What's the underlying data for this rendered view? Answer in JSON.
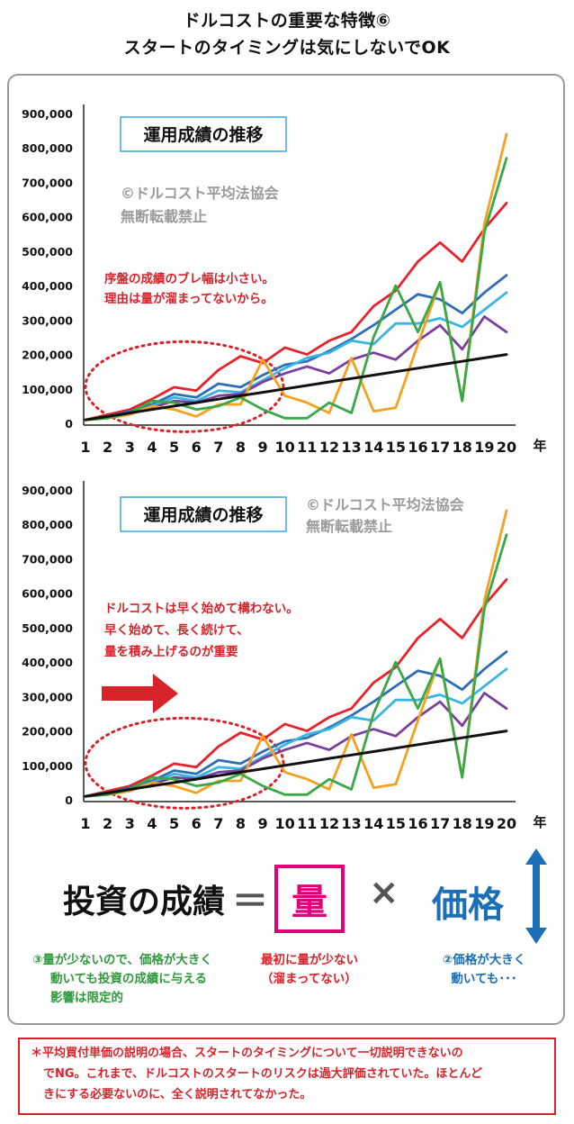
{
  "header": {
    "line1": "ドルコストの重要な特徴⑥",
    "line2": "スタートのタイミングは気にしないでOK"
  },
  "chart_data": [
    {
      "type": "line",
      "title": "運用成績の推移",
      "watermark_line1": "©ドルコスト平均法協会",
      "watermark_line2": "無断転載禁止",
      "annotation_lines": [
        "序盤の成績のブレ幅は小さい。",
        "理由は量が溜まってないから。"
      ],
      "x": [
        1,
        2,
        3,
        4,
        5,
        6,
        7,
        8,
        9,
        10,
        11,
        12,
        13,
        14,
        15,
        16,
        17,
        18,
        19,
        20
      ],
      "x_tick_labels": [
        "1",
        "2",
        "3",
        "4",
        "5",
        "6",
        "7",
        "8",
        "9",
        "10",
        "11",
        "12",
        "13",
        "14",
        "15",
        "16",
        "17",
        "18",
        "19",
        "20"
      ],
      "xlabel": "年",
      "ylim": [
        0,
        900000
      ],
      "y_tick_labels": [
        "0",
        "100,000",
        "200,000",
        "300,000",
        "400,000",
        "500,000",
        "600,000",
        "700,000",
        "800,000",
        "900,000"
      ],
      "grid": false,
      "series": [
        {
          "color": "#111111",
          "values": [
            10000,
            20000,
            30000,
            40000,
            50000,
            60000,
            70000,
            80000,
            90000,
            100000,
            110000,
            120000,
            130000,
            140000,
            150000,
            160000,
            170000,
            180000,
            190000,
            200000
          ]
        },
        {
          "color": "#e8222a",
          "values": [
            10000,
            25000,
            40000,
            70000,
            105000,
            95000,
            155000,
            195000,
            175000,
            220000,
            200000,
            240000,
            265000,
            340000,
            385000,
            470000,
            525000,
            470000,
            565000,
            640000
          ]
        },
        {
          "color": "#2f6db5",
          "values": [
            10000,
            20000,
            35000,
            55000,
            85000,
            75000,
            115000,
            105000,
            140000,
            170000,
            180000,
            210000,
            245000,
            285000,
            330000,
            375000,
            360000,
            320000,
            380000,
            430000
          ]
        },
        {
          "color": "#39b5e3",
          "values": [
            10000,
            20000,
            30000,
            50000,
            75000,
            65000,
            95000,
            90000,
            125000,
            160000,
            190000,
            205000,
            240000,
            230000,
            290000,
            290000,
            305000,
            280000,
            330000,
            380000
          ]
        },
        {
          "color": "#7b3f9e",
          "values": [
            10000,
            18000,
            30000,
            45000,
            65000,
            60000,
            80000,
            85000,
            120000,
            145000,
            165000,
            145000,
            185000,
            205000,
            185000,
            240000,
            285000,
            215000,
            310000,
            265000
          ]
        },
        {
          "color": "#f5a01e",
          "values": [
            10000,
            15000,
            25000,
            50000,
            40000,
            20000,
            55000,
            55000,
            185000,
            80000,
            60000,
            30000,
            190000,
            35000,
            45000,
            230000,
            410000,
            65000,
            580000,
            840000
          ]
        },
        {
          "color": "#39a846",
          "values": [
            10000,
            15000,
            30000,
            65000,
            60000,
            40000,
            50000,
            75000,
            40000,
            15000,
            15000,
            60000,
            30000,
            250000,
            400000,
            265000,
            410000,
            65000,
            555000,
            770000
          ]
        }
      ]
    },
    {
      "type": "line",
      "title": "運用成績の推移",
      "watermark_line1": "©ドルコスト平均法協会",
      "watermark_line2": "無断転載禁止",
      "annotation_lines": [
        "ドルコストは早く始めて構わない。",
        "早く始めて、長く続けて、",
        "量を積み上げるのが重要"
      ],
      "x": [
        1,
        2,
        3,
        4,
        5,
        6,
        7,
        8,
        9,
        10,
        11,
        12,
        13,
        14,
        15,
        16,
        17,
        18,
        19,
        20
      ],
      "x_tick_labels": [
        "1",
        "2",
        "3",
        "4",
        "5",
        "6",
        "7",
        "8",
        "9",
        "10",
        "11",
        "12",
        "13",
        "14",
        "15",
        "16",
        "17",
        "18",
        "19",
        "20"
      ],
      "xlabel": "年",
      "ylim": [
        0,
        900000
      ],
      "y_tick_labels": [
        "0",
        "100,000",
        "200,000",
        "300,000",
        "400,000",
        "500,000",
        "600,000",
        "700,000",
        "800,000",
        "900,000"
      ],
      "grid": false,
      "series": [
        {
          "color": "#111111",
          "values": [
            10000,
            20000,
            30000,
            40000,
            50000,
            60000,
            70000,
            80000,
            90000,
            100000,
            110000,
            120000,
            130000,
            140000,
            150000,
            160000,
            170000,
            180000,
            190000,
            200000
          ]
        },
        {
          "color": "#e8222a",
          "values": [
            10000,
            25000,
            40000,
            70000,
            105000,
            95000,
            155000,
            195000,
            175000,
            220000,
            200000,
            240000,
            265000,
            340000,
            385000,
            470000,
            525000,
            470000,
            565000,
            640000
          ]
        },
        {
          "color": "#2f6db5",
          "values": [
            10000,
            20000,
            35000,
            55000,
            85000,
            75000,
            115000,
            105000,
            140000,
            170000,
            180000,
            210000,
            245000,
            285000,
            330000,
            375000,
            360000,
            320000,
            380000,
            430000
          ]
        },
        {
          "color": "#39b5e3",
          "values": [
            10000,
            20000,
            30000,
            50000,
            75000,
            65000,
            95000,
            90000,
            125000,
            160000,
            190000,
            205000,
            240000,
            230000,
            290000,
            290000,
            305000,
            280000,
            330000,
            380000
          ]
        },
        {
          "color": "#7b3f9e",
          "values": [
            10000,
            18000,
            30000,
            45000,
            65000,
            60000,
            80000,
            85000,
            120000,
            145000,
            165000,
            145000,
            185000,
            205000,
            185000,
            240000,
            285000,
            215000,
            310000,
            265000
          ]
        },
        {
          "color": "#f5a01e",
          "values": [
            10000,
            15000,
            25000,
            50000,
            40000,
            20000,
            55000,
            55000,
            185000,
            80000,
            60000,
            30000,
            190000,
            35000,
            45000,
            230000,
            410000,
            65000,
            580000,
            840000
          ]
        },
        {
          "color": "#39a846",
          "values": [
            10000,
            15000,
            30000,
            65000,
            60000,
            40000,
            50000,
            75000,
            40000,
            15000,
            15000,
            60000,
            30000,
            250000,
            400000,
            265000,
            410000,
            65000,
            555000,
            770000
          ]
        }
      ]
    }
  ],
  "equation": {
    "left": "投資の成績",
    "equals": "＝",
    "quantity": "量",
    "times": "×",
    "price": "価格"
  },
  "notes": {
    "green": [
      "③量が少ないので、価格が大きく",
      "動いても投資の成績に与える",
      "影響は限定的"
    ],
    "red": [
      "最初に量が少ない",
      "（溜まってない）"
    ],
    "blue": [
      "②価格が大きく",
      "動いても･･･"
    ]
  },
  "footnote": [
    "＊平均買付単価の説明の場合、スタートのタイミングについて一切説明できないの",
    "でNG。これまで、ドルコストのスタートのリスクは過大評価されていた。ほとんど",
    "きにする必要ないのに、全く説明されてなかった。"
  ],
  "colors": {
    "accent_red": "#d8232a",
    "accent_pink": "#e0007a",
    "accent_blue": "#1a6fb8",
    "accent_green": "#2e9a3c",
    "title_box_border": "#3aa9de",
    "watermark": "#9b9b9b"
  }
}
